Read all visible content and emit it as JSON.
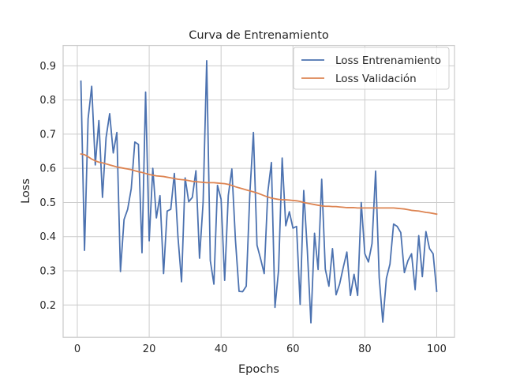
{
  "chart_data": {
    "type": "line",
    "title": "Curva de Entrenamiento",
    "xlabel": "Epochs",
    "ylabel": "Loss",
    "xlim": [
      -3.95,
      104.95
    ],
    "ylim": [
      0.1055,
      0.9595
    ],
    "xticks": [
      0,
      20,
      40,
      60,
      80,
      100
    ],
    "yticks": [
      0.2,
      0.3,
      0.4,
      0.5,
      0.6,
      0.7,
      0.8,
      0.9
    ],
    "grid": true,
    "legend_position": "top-right",
    "colors": {
      "train": "#4c72b0",
      "val": "#dd8452",
      "grid": "#cccccc",
      "spine": "#cccccc",
      "text": "#262626"
    },
    "series": [
      {
        "name": "Loss Entrenamiento",
        "x": [
          1,
          2,
          3,
          4,
          5,
          6,
          7,
          8,
          9,
          10,
          11,
          12,
          13,
          14,
          15,
          16,
          17,
          18,
          19,
          20,
          21,
          22,
          23,
          24,
          25,
          26,
          27,
          28,
          29,
          30,
          31,
          32,
          33,
          34,
          35,
          36,
          37,
          38,
          39,
          40,
          41,
          42,
          43,
          44,
          45,
          46,
          47,
          48,
          49,
          50,
          51,
          52,
          53,
          54,
          55,
          56,
          57,
          58,
          59,
          60,
          61,
          62,
          63,
          64,
          65,
          66,
          67,
          68,
          69,
          70,
          71,
          72,
          73,
          74,
          75,
          76,
          77,
          78,
          79,
          80,
          81,
          82,
          83,
          84,
          85,
          86,
          87,
          88,
          89,
          90,
          91,
          92,
          93,
          94,
          95,
          96,
          97,
          98,
          99,
          100
        ],
        "values": [
          0.855,
          0.36,
          0.745,
          0.84,
          0.61,
          0.74,
          0.515,
          0.69,
          0.76,
          0.645,
          0.705,
          0.298,
          0.45,
          0.48,
          0.54,
          0.677,
          0.67,
          0.353,
          0.823,
          0.388,
          0.6,
          0.455,
          0.52,
          0.292,
          0.475,
          0.48,
          0.585,
          0.4,
          0.268,
          0.572,
          0.502,
          0.515,
          0.593,
          0.337,
          0.5,
          0.915,
          0.33,
          0.261,
          0.55,
          0.51,
          0.272,
          0.52,
          0.598,
          0.39,
          0.24,
          0.239,
          0.255,
          0.525,
          0.705,
          0.375,
          0.335,
          0.292,
          0.53,
          0.617,
          0.193,
          0.302,
          0.63,
          0.432,
          0.473,
          0.425,
          0.43,
          0.202,
          0.535,
          0.36,
          0.148,
          0.41,
          0.304,
          0.568,
          0.305,
          0.255,
          0.365,
          0.23,
          0.262,
          0.31,
          0.355,
          0.228,
          0.29,
          0.228,
          0.5,
          0.35,
          0.326,
          0.38,
          0.592,
          0.28,
          0.15,
          0.278,
          0.32,
          0.437,
          0.43,
          0.412,
          0.295,
          0.33,
          0.35,
          0.245,
          0.403,
          0.283,
          0.415,
          0.365,
          0.35,
          0.24
        ]
      },
      {
        "name": "Loss Validación",
        "x": [
          1,
          2,
          3,
          4,
          5,
          6,
          7,
          8,
          9,
          10,
          11,
          12,
          13,
          14,
          15,
          16,
          17,
          18,
          19,
          20,
          21,
          22,
          23,
          24,
          25,
          26,
          27,
          28,
          29,
          30,
          31,
          32,
          33,
          34,
          35,
          36,
          37,
          38,
          39,
          40,
          41,
          42,
          43,
          44,
          45,
          46,
          47,
          48,
          49,
          50,
          51,
          52,
          53,
          54,
          55,
          56,
          57,
          58,
          59,
          60,
          61,
          62,
          63,
          64,
          65,
          66,
          67,
          68,
          69,
          70,
          71,
          72,
          73,
          74,
          75,
          76,
          77,
          78,
          79,
          80,
          81,
          82,
          83,
          84,
          85,
          86,
          87,
          88,
          89,
          90,
          91,
          92,
          93,
          94,
          95,
          96,
          97,
          98,
          99,
          100
        ],
        "values": [
          0.642,
          0.64,
          0.634,
          0.627,
          0.622,
          0.618,
          0.616,
          0.613,
          0.61,
          0.607,
          0.604,
          0.602,
          0.6,
          0.598,
          0.596,
          0.593,
          0.59,
          0.588,
          0.585,
          0.582,
          0.58,
          0.578,
          0.577,
          0.576,
          0.574,
          0.572,
          0.57,
          0.568,
          0.567,
          0.566,
          0.564,
          0.562,
          0.561,
          0.56,
          0.559,
          0.558,
          0.558,
          0.558,
          0.557,
          0.556,
          0.555,
          0.553,
          0.55,
          0.546,
          0.543,
          0.54,
          0.537,
          0.534,
          0.531,
          0.528,
          0.524,
          0.52,
          0.516,
          0.513,
          0.511,
          0.509,
          0.508,
          0.508,
          0.507,
          0.506,
          0.505,
          0.503,
          0.5,
          0.498,
          0.496,
          0.494,
          0.492,
          0.49,
          0.489,
          0.489,
          0.488,
          0.488,
          0.487,
          0.486,
          0.485,
          0.485,
          0.485,
          0.484,
          0.484,
          0.484,
          0.484,
          0.484,
          0.484,
          0.484,
          0.484,
          0.484,
          0.484,
          0.484,
          0.483,
          0.482,
          0.481,
          0.479,
          0.477,
          0.476,
          0.475,
          0.473,
          0.471,
          0.47,
          0.468,
          0.466
        ]
      }
    ]
  }
}
